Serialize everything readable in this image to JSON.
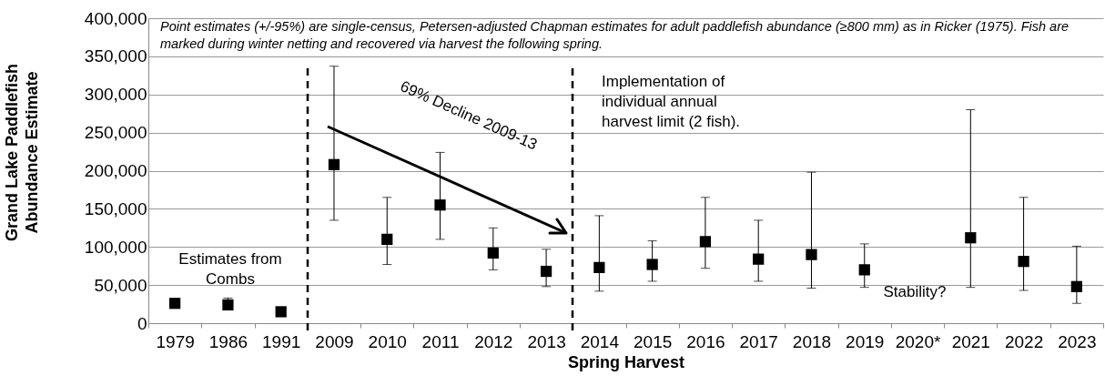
{
  "chart_data": {
    "type": "scatter",
    "xlabel": "Spring Harvest",
    "ylabel": "Grand Lake Paddlefish Abundance Estimate",
    "categories": [
      "1979",
      "1986",
      "1991",
      "2009",
      "2010",
      "2011",
      "2012",
      "2013",
      "2014",
      "2015",
      "2016",
      "2017",
      "2018",
      "2019",
      "2020*",
      "2021",
      "2022",
      "2023"
    ],
    "series": [
      {
        "color": "#000000",
        "values": [
          26000,
          24000,
          15000,
          208000,
          110000,
          155000,
          92000,
          68000,
          73000,
          77000,
          107000,
          84000,
          90000,
          70000,
          null,
          112000,
          81000,
          48000
        ],
        "errors": [
          null,
          [
            20000,
            33000
          ],
          null,
          [
            135000,
            337000
          ],
          [
            77000,
            165000
          ],
          [
            110000,
            224000
          ],
          [
            70000,
            125000
          ],
          [
            48000,
            97000
          ],
          [
            42000,
            141000
          ],
          [
            55000,
            108000
          ],
          [
            72000,
            165000
          ],
          [
            55000,
            135000
          ],
          [
            46000,
            198000
          ],
          [
            47000,
            104000
          ],
          null,
          [
            47000,
            280000
          ],
          [
            43000,
            165000
          ],
          [
            26000,
            101000
          ]
        ]
      }
    ],
    "ylim": [
      0,
      400000
    ],
    "yticks": [
      0,
      {
        "value": 50000,
        "label": "50,000"
      },
      {
        "value": 100000,
        "label": "100,000"
      },
      {
        "value": 150000,
        "label": "150,000"
      },
      {
        "value": 200000,
        "label": "200,000"
      },
      {
        "value": 250000,
        "label": "250,000"
      },
      {
        "value": 300000,
        "label": "300,000"
      },
      {
        "value": 350000,
        "label": "350,000"
      },
      {
        "value": 400000,
        "label": "400,000"
      }
    ],
    "grid": "y",
    "marker": "square",
    "annotations": [
      "Point estimates (+/-95%) are single-census, Petersen-adjusted Chapman estimates for adult paddlefish abundance (≥800 mm) as in Ricker (1975).  Fish are marked during winter netting and recovered via harvest the following spring.",
      "Estimates from Combs",
      "69% Decline 2009-13",
      "Implementation of  individual  annual harvest limit (2 fish).",
      "Stability?"
    ]
  }
}
